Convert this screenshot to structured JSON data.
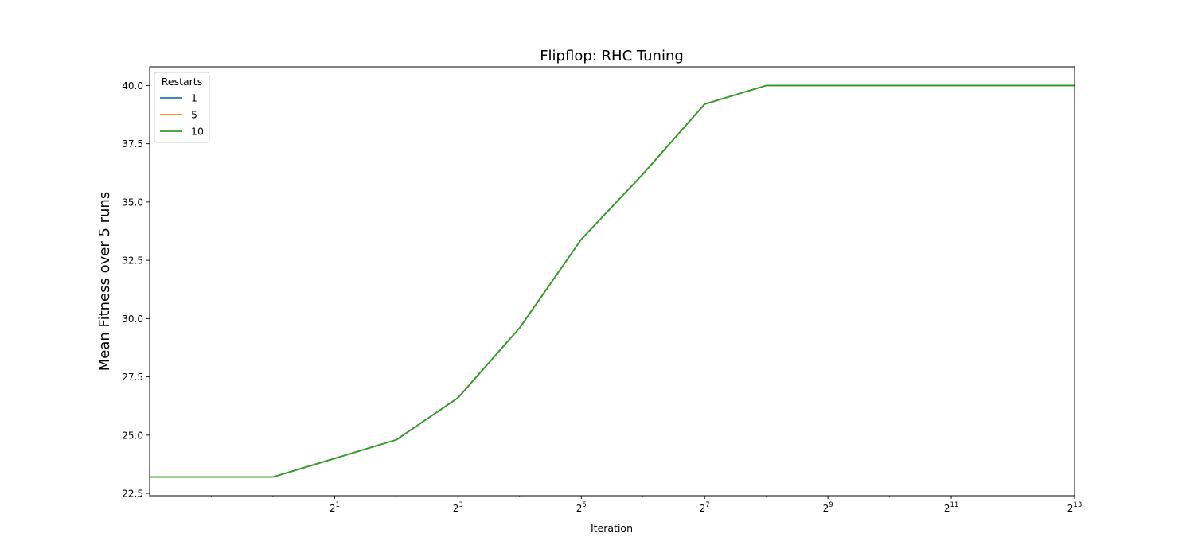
{
  "chart_data": {
    "type": "line",
    "title": "Flipflop: RHC Tuning",
    "xlabel": "Iteration",
    "ylabel": "Mean Fitness over 5 runs",
    "xscale": "log2",
    "xlim": [
      0.25,
      8192
    ],
    "ylim": [
      22.4,
      40.8
    ],
    "x_ticks": [
      {
        "value": 2,
        "base": "2",
        "exp": "1"
      },
      {
        "value": 8,
        "base": "2",
        "exp": "3"
      },
      {
        "value": 32,
        "base": "2",
        "exp": "5"
      },
      {
        "value": 128,
        "base": "2",
        "exp": "7"
      },
      {
        "value": 512,
        "base": "2",
        "exp": "9"
      },
      {
        "value": 2048,
        "base": "2",
        "exp": "11"
      },
      {
        "value": 8192,
        "base": "2",
        "exp": "13"
      }
    ],
    "y_ticks": [
      {
        "value": 22.5,
        "label": "22.5"
      },
      {
        "value": 25.0,
        "label": "25.0"
      },
      {
        "value": 27.5,
        "label": "27.5"
      },
      {
        "value": 30.0,
        "label": "30.0"
      },
      {
        "value": 32.5,
        "label": "32.5"
      },
      {
        "value": 35.0,
        "label": "35.0"
      },
      {
        "value": 37.5,
        "label": "37.5"
      },
      {
        "value": 40.0,
        "label": "40.0"
      }
    ],
    "grid": false,
    "legend": {
      "title": "Restarts",
      "placement": "top-left"
    },
    "x": [
      0.25,
      0.5,
      1,
      2,
      4,
      8,
      16,
      32,
      64,
      128,
      256,
      512,
      1024,
      2048,
      4096,
      8192
    ],
    "series": [
      {
        "name": "1",
        "color": "#1f77b4",
        "values": [
          23.2,
          23.2,
          23.2,
          24.0,
          24.8,
          26.6,
          29.6,
          33.4,
          36.2,
          39.2,
          40.0,
          40.0,
          40.0,
          40.0,
          40.0,
          40.0
        ]
      },
      {
        "name": "5",
        "color": "#ff7f0e",
        "values": [
          23.2,
          23.2,
          23.2,
          24.0,
          24.8,
          26.6,
          29.6,
          33.4,
          36.2,
          39.2,
          40.0,
          40.0,
          40.0,
          40.0,
          40.0,
          40.0
        ]
      },
      {
        "name": "10",
        "color": "#2ca02c",
        "values": [
          23.2,
          23.2,
          23.2,
          24.0,
          24.8,
          26.6,
          29.6,
          33.4,
          36.2,
          39.2,
          40.0,
          40.0,
          40.0,
          40.0,
          40.0,
          40.0
        ]
      }
    ]
  }
}
